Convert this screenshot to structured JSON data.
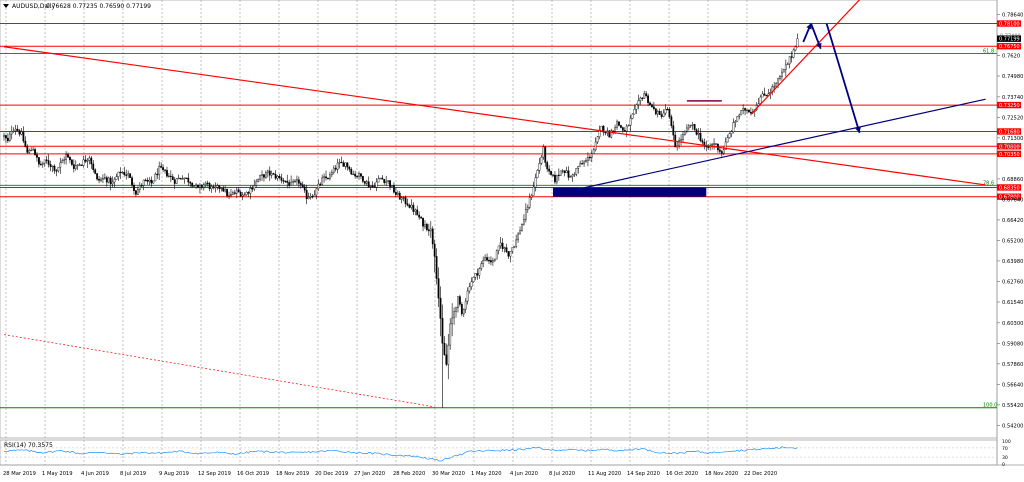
{
  "window": {
    "symbol_label": "AUDUSD,Daily",
    "ohlc_text": "0.76628 0.77235 0.76590 0.77199",
    "triangle_icon": "down-triangle-icon"
  },
  "chart_data": [
    {
      "type": "candlestick",
      "title": "AUDUSD,Daily",
      "ylim": [
        0.5351,
        0.7938
      ],
      "y_ticks": [
        0.7864,
        0.762,
        0.7498,
        0.7374,
        0.7252,
        0.713,
        0.6886,
        0.6764,
        0.6642,
        0.652,
        0.6398,
        0.6276,
        0.6154,
        0.603,
        0.5908,
        0.5786,
        0.5664,
        0.5542,
        0.542
      ],
      "y_tick_labels": [
        "0.78640",
        "0.7620",
        "0.74980",
        "0.73740",
        "0.72520",
        "0.71300",
        "0.68860",
        "0.67640",
        "0.66420",
        "0.65200",
        "0.63980",
        "0.62760",
        "0.61540",
        "0.60300",
        "0.59080",
        "0.57860",
        "0.56640",
        "0.55420",
        "0.54200"
      ],
      "x_labels": [
        "28 Mar 2019",
        "1 May 2019",
        "4 Jun 2019",
        "8 Jul 2019",
        "9 Aug 2019",
        "12 Sep 2019",
        "16 Oct 2019",
        "18 Nov 2019",
        "20 Dec 2019",
        "27 Jan 2020",
        "28 Feb 2020",
        "30 Mar 2020",
        "1 May 2020",
        "4 Jun 2020",
        "8 Jul 2020",
        "11 Aug 2020",
        "14 Sep 2020",
        "16 Oct 2020",
        "18 Nov 2020",
        "22 Dec 2020"
      ],
      "last_price": 0.77199,
      "last_price_label": "0.77199",
      "price_anchors": [
        [
          0,
          0.7139
        ],
        [
          2,
          0.7105
        ],
        [
          4,
          0.718
        ],
        [
          6,
          0.719
        ],
        [
          9,
          0.715
        ],
        [
          12,
          0.704
        ],
        [
          15,
          0.707
        ],
        [
          18,
          0.697
        ],
        [
          22,
          0.699
        ],
        [
          27,
          0.694
        ],
        [
          32,
          0.7025
        ],
        [
          36,
          0.696
        ],
        [
          40,
          0.698
        ],
        [
          44,
          0.702
        ],
        [
          48,
          0.6875
        ],
        [
          52,
          0.689
        ],
        [
          56,
          0.686
        ],
        [
          60,
          0.693
        ],
        [
          64,
          0.691
        ],
        [
          68,
          0.6805
        ],
        [
          72,
          0.687
        ],
        [
          76,
          0.686
        ],
        [
          80,
          0.6945
        ],
        [
          84,
          0.6915
        ],
        [
          88,
          0.6875
        ],
        [
          92,
          0.69
        ],
        [
          96,
          0.687
        ],
        [
          100,
          0.6825
        ],
        [
          104,
          0.686
        ],
        [
          108,
          0.682
        ],
        [
          112,
          0.684
        ],
        [
          116,
          0.678
        ],
        [
          120,
          0.681
        ],
        [
          124,
          0.679
        ],
        [
          128,
          0.684
        ],
        [
          132,
          0.6895
        ],
        [
          136,
          0.692
        ],
        [
          140,
          0.69
        ],
        [
          144,
          0.688
        ],
        [
          148,
          0.685
        ],
        [
          152,
          0.687
        ],
        [
          156,
          0.678
        ],
        [
          160,
          0.68
        ],
        [
          164,
          0.688
        ],
        [
          168,
          0.69
        ],
        [
          172,
          0.697
        ],
        [
          176,
          0.698
        ],
        [
          180,
          0.6915
        ],
        [
          184,
          0.69
        ],
        [
          188,
          0.685
        ],
        [
          190,
          0.684
        ],
        [
          194,
          0.689
        ],
        [
          198,
          0.687
        ],
        [
          202,
          0.6795
        ],
        [
          208,
          0.674
        ],
        [
          212,
          0.669
        ],
        [
          216,
          0.662
        ],
        [
          220,
          0.658
        ],
        [
          222,
          0.644
        ],
        [
          224,
          0.618
        ],
        [
          226,
          0.59
        ],
        [
          228,
          0.578
        ],
        [
          230,
          0.601
        ],
        [
          232,
          0.61
        ],
        [
          234,
          0.617
        ],
        [
          236,
          0.608
        ],
        [
          240,
          0.626
        ],
        [
          244,
          0.633
        ],
        [
          248,
          0.642
        ],
        [
          252,
          0.639
        ],
        [
          256,
          0.65
        ],
        [
          260,
          0.644
        ],
        [
          264,
          0.652
        ],
        [
          268,
          0.665
        ],
        [
          272,
          0.68
        ],
        [
          276,
          0.698
        ],
        [
          278,
          0.706
        ],
        [
          280,
          0.693
        ],
        [
          284,
          0.688
        ],
        [
          288,
          0.695
        ],
        [
          292,
          0.689
        ],
        [
          296,
          0.696
        ],
        [
          300,
          0.699
        ],
        [
          304,
          0.706
        ],
        [
          308,
          0.719
        ],
        [
          312,
          0.715
        ],
        [
          316,
          0.722
        ],
        [
          320,
          0.7165
        ],
        [
          324,
          0.726
        ],
        [
          328,
          0.736
        ],
        [
          330,
          0.7395
        ],
        [
          334,
          0.731
        ],
        [
          338,
          0.726
        ],
        [
          342,
          0.73
        ],
        [
          346,
          0.708
        ],
        [
          350,
          0.714
        ],
        [
          354,
          0.721
        ],
        [
          358,
          0.715
        ],
        [
          362,
          0.706
        ],
        [
          366,
          0.71
        ],
        [
          370,
          0.704
        ],
        [
          374,
          0.715
        ],
        [
          378,
          0.726
        ],
        [
          382,
          0.73
        ],
        [
          386,
          0.729
        ],
        [
          390,
          0.737
        ],
        [
          394,
          0.74
        ],
        [
          398,
          0.745
        ],
        [
          402,
          0.753
        ],
        [
          406,
          0.762
        ],
        [
          409,
          0.772
        ]
      ],
      "annotations": {
        "horizontal_levels": [
          {
            "value": 0.781,
            "label": "0.78100",
            "kind": "red-line"
          },
          {
            "value": 0.7675,
            "label": "0.76750",
            "kind": "red-line"
          },
          {
            "value": 0.7325,
            "label": "0.73250",
            "kind": "red-line"
          },
          {
            "value": 0.7168,
            "label": "0.71680",
            "kind": "red-line"
          },
          {
            "value": 0.708,
            "label": "0.70800",
            "kind": "red-line"
          },
          {
            "value": 0.7035,
            "label": "0.70350",
            "kind": "red-line"
          },
          {
            "value": 0.6835,
            "label": "0.68350",
            "kind": "red-line"
          },
          {
            "value": 0.678,
            "label": "0.67800",
            "kind": "red-line"
          }
        ],
        "grey_level_labels": [
          "0.77400",
          "0.70850"
        ],
        "fib_levels": [
          {
            "value": 0.7632,
            "label": "61.8"
          },
          {
            "value": 0.6848,
            "label": "78.6"
          },
          {
            "value": 0.5525,
            "label": "100.0"
          }
        ],
        "trendlines": [
          {
            "from_bar": 0,
            "from_price": 0.7672,
            "to_bar": 506,
            "to_price": 0.685,
            "color": "#ff0000",
            "dashed": false
          },
          {
            "from_bar": 385,
            "from_price": 0.727,
            "to_bar": 445,
            "to_price": 0.8,
            "color": "#ff0000",
            "dashed": false
          },
          {
            "from_bar": 0,
            "from_price": 0.596,
            "to_bar": 222,
            "to_price": 0.553,
            "color": "#ff0000",
            "dashed": true
          },
          {
            "from_bar": 288,
            "from_price": 0.6805,
            "to_bar": 506,
            "to_price": 0.736,
            "color": "#00007f",
            "dashed": false
          }
        ],
        "rectangle": {
          "from_bar": 283,
          "to_bar": 362,
          "price_top": 0.6835,
          "price_bottom": 0.678
        },
        "purple_segment": {
          "from_bar": 352,
          "to_bar": 370,
          "price": 0.735
        },
        "arrows": [
          {
            "from_bar": 412,
            "from_price": 0.77,
            "to_bar": 416,
            "to_price": 0.781
          },
          {
            "from_bar": 416,
            "from_price": 0.781,
            "to_bar": 421,
            "to_price": 0.766
          },
          {
            "from_bar": 424,
            "from_price": 0.781,
            "to_bar": 441,
            "to_price": 0.716
          }
        ]
      }
    },
    {
      "type": "line",
      "title": "RSI(14) 70.3575",
      "ylim": [
        0,
        100
      ],
      "y_ticks": [
        100,
        70,
        30,
        0
      ],
      "y_tick_labels": [
        "100",
        "70",
        "30",
        "0"
      ],
      "values_anchor": [
        [
          0,
          56
        ],
        [
          10,
          60
        ],
        [
          20,
          50
        ],
        [
          30,
          58
        ],
        [
          40,
          45
        ],
        [
          50,
          52
        ],
        [
          60,
          42
        ],
        [
          70,
          50
        ],
        [
          80,
          47
        ],
        [
          90,
          55
        ],
        [
          100,
          46
        ],
        [
          110,
          50
        ],
        [
          120,
          44
        ],
        [
          130,
          55
        ],
        [
          140,
          52
        ],
        [
          150,
          48
        ],
        [
          160,
          53
        ],
        [
          170,
          58
        ],
        [
          180,
          50
        ],
        [
          190,
          46
        ],
        [
          200,
          40
        ],
        [
          210,
          35
        ],
        [
          215,
          30
        ],
        [
          220,
          22
        ],
        [
          224,
          14
        ],
        [
          228,
          20
        ],
        [
          232,
          38
        ],
        [
          236,
          42
        ],
        [
          240,
          55
        ],
        [
          250,
          58
        ],
        [
          260,
          60
        ],
        [
          270,
          65
        ],
        [
          276,
          72
        ],
        [
          280,
          60
        ],
        [
          290,
          62
        ],
        [
          300,
          58
        ],
        [
          310,
          63
        ],
        [
          320,
          58
        ],
        [
          328,
          68
        ],
        [
          336,
          52
        ],
        [
          346,
          46
        ],
        [
          356,
          55
        ],
        [
          364,
          48
        ],
        [
          372,
          56
        ],
        [
          382,
          60
        ],
        [
          392,
          66
        ],
        [
          402,
          72
        ],
        [
          409,
          70
        ]
      ]
    }
  ]
}
